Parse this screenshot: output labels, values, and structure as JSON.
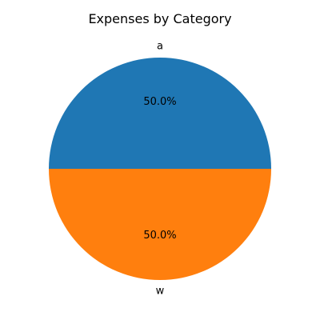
{
  "chart_data": {
    "type": "pie",
    "title": "Expenses by Category",
    "labels": [
      "a",
      "w"
    ],
    "values": [
      50,
      50
    ],
    "percent_labels": [
      "50.0%",
      "50.0%"
    ],
    "colors": [
      "#1f77b4",
      "#ff7f0e"
    ],
    "start_angle": "3 o'clock",
    "direction": "counterclockwise"
  }
}
